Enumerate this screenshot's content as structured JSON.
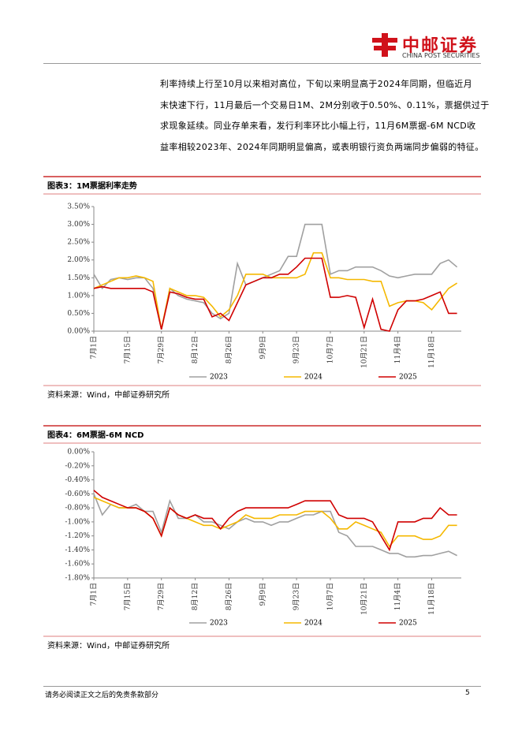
{
  "header": {
    "logo_cn": "中邮证券",
    "logo_en": "CHINA POST SECURITIES"
  },
  "paragraph": [
    "利率持续上行至10月以来相对高位，下旬以来明显高于2024年同期，但临近月",
    "末快速下行，11月最后一个交易日1M、2M分别收于0.50%、0.11%，票据供过于",
    "求现象延续。同业存单来看，发行利率环比小幅上行，11月6M票据-6M NCD收",
    "益率相较2023年、2024年同期明显偏高，或表明银行资负两端同步偏弱的特征。"
  ],
  "chart_data": [
    {
      "type": "line",
      "title": "图表3：1M票据利率走势",
      "source": "资料来源：Wind，中邮证券研究所",
      "categories": [
        "7月1日",
        null,
        null,
        null,
        "7月15日",
        null,
        null,
        null,
        "7月29日",
        null,
        null,
        null,
        "8月12日",
        null,
        null,
        null,
        "8月26日",
        null,
        null,
        null,
        "9月9日",
        null,
        null,
        null,
        "9月23日",
        null,
        null,
        null,
        "10月7日",
        null,
        null,
        null,
        "10月21日",
        null,
        null,
        null,
        "11月4日",
        null,
        null,
        null,
        "11月18日",
        null,
        null,
        null
      ],
      "series": [
        {
          "name": "2023",
          "color": "#a0a0a0",
          "values": [
            1.6,
            1.2,
            1.45,
            1.5,
            1.45,
            1.5,
            1.5,
            1.2,
            0.05,
            1.2,
            1.0,
            0.9,
            0.85,
            0.8,
            0.5,
            0.35,
            0.5,
            1.9,
            1.3,
            1.4,
            1.5,
            1.6,
            1.7,
            2.1,
            2.1,
            3.0,
            3.0,
            3.0,
            1.6,
            1.7,
            1.7,
            1.8,
            1.8,
            1.8,
            1.7,
            1.55,
            1.5,
            1.55,
            1.6,
            1.6,
            1.6,
            1.9,
            2.0,
            1.8
          ]
        },
        {
          "name": "2024",
          "color": "#f5b800",
          "values": [
            1.2,
            1.3,
            1.4,
            1.5,
            1.5,
            1.55,
            1.5,
            1.4,
            0.05,
            1.2,
            1.1,
            1.0,
            1.0,
            0.95,
            0.7,
            0.4,
            0.6,
            1.0,
            1.6,
            1.6,
            1.6,
            1.5,
            1.5,
            1.5,
            1.5,
            1.6,
            2.2,
            2.2,
            1.5,
            1.5,
            1.45,
            1.45,
            1.45,
            1.4,
            1.4,
            0.7,
            0.8,
            0.85,
            0.85,
            0.8,
            0.6,
            0.9,
            1.2,
            1.35
          ]
        },
        {
          "name": "2025",
          "color": "#d00000",
          "values": [
            1.2,
            1.25,
            1.2,
            1.2,
            1.2,
            1.2,
            1.2,
            1.1,
            0.05,
            1.1,
            1.05,
            0.95,
            0.9,
            0.9,
            0.4,
            0.5,
            0.3,
            0.8,
            1.3,
            1.4,
            1.5,
            1.5,
            1.6,
            1.6,
            1.8,
            2.05,
            2.05,
            2.05,
            0.95,
            0.95,
            1.0,
            0.95,
            0.1,
            0.9,
            0.05,
            0.0,
            0.6,
            0.85,
            0.85,
            0.9,
            1.0,
            1.1,
            0.5,
            0.5
          ]
        }
      ],
      "ylim": [
        0,
        3.5
      ],
      "yticks": [
        {
          "value": 0,
          "label": "0.00%"
        },
        {
          "value": 0.5,
          "label": "0.50%"
        },
        {
          "value": 1,
          "label": "1.00%"
        },
        {
          "value": 1.5,
          "label": "1.50%"
        },
        {
          "value": 2,
          "label": "2.00%"
        },
        {
          "value": 2.5,
          "label": "2.50%"
        },
        {
          "value": 3,
          "label": "3.00%"
        },
        {
          "value": 3.5,
          "label": "3.50%"
        }
      ]
    },
    {
      "type": "line",
      "title": "图表4：6M票据-6M NCD",
      "source": "资料来源：Wind，中邮证券研究所",
      "categories": [
        "7月1日",
        null,
        null,
        null,
        "7月15日",
        null,
        null,
        null,
        "7月29日",
        null,
        null,
        null,
        "8月12日",
        null,
        null,
        null,
        "8月26日",
        null,
        null,
        null,
        "9月9日",
        null,
        null,
        null,
        "9月23日",
        null,
        null,
        null,
        "10月7日",
        null,
        null,
        null,
        "10月21日",
        null,
        null,
        null,
        "11月4日",
        null,
        null,
        null,
        "11月18日",
        null,
        null,
        null
      ],
      "series": [
        {
          "name": "2023",
          "color": "#a0a0a0",
          "values": [
            -0.6,
            -0.9,
            -0.75,
            -0.8,
            -0.8,
            -0.75,
            -0.85,
            -0.85,
            -1.15,
            -0.7,
            -0.95,
            -0.95,
            -0.9,
            -1.0,
            -1.0,
            -1.05,
            -1.1,
            -1.0,
            -0.95,
            -1.0,
            -1.0,
            -1.05,
            -1.0,
            -1.0,
            -0.95,
            -0.9,
            -0.9,
            -0.85,
            -0.85,
            -1.15,
            -1.2,
            -1.35,
            -1.35,
            -1.35,
            -1.4,
            -1.45,
            -1.45,
            -1.5,
            -1.5,
            -1.48,
            -1.48,
            -1.45,
            -1.42,
            -1.48
          ]
        },
        {
          "name": "2024",
          "color": "#f5b800",
          "values": [
            -0.65,
            -0.7,
            -0.75,
            -0.8,
            -0.8,
            -0.8,
            -0.85,
            -0.95,
            -1.2,
            -0.8,
            -0.9,
            -0.95,
            -1.0,
            -1.05,
            -1.05,
            -1.1,
            -1.05,
            -1.0,
            -0.9,
            -0.95,
            -0.95,
            -0.95,
            -0.9,
            -0.9,
            -0.9,
            -0.85,
            -0.85,
            -0.85,
            -0.95,
            -1.1,
            -1.1,
            -1.0,
            -1.05,
            -1.1,
            -1.15,
            -1.35,
            -1.2,
            -1.2,
            -1.2,
            -1.25,
            -1.25,
            -1.2,
            -1.05,
            -1.05
          ]
        },
        {
          "name": "2025",
          "color": "#d00000",
          "values": [
            -0.55,
            -0.65,
            -0.7,
            -0.75,
            -0.8,
            -0.8,
            -0.85,
            -0.95,
            -1.2,
            -0.8,
            -0.9,
            -0.95,
            -0.9,
            -0.95,
            -0.95,
            -1.1,
            -0.95,
            -0.85,
            -0.8,
            -0.8,
            -0.8,
            -0.8,
            -0.8,
            -0.8,
            -0.75,
            -0.7,
            -0.7,
            -0.7,
            -0.7,
            -0.9,
            -0.95,
            -0.95,
            -0.95,
            -1.0,
            -1.2,
            -1.4,
            -1.0,
            -1.0,
            -1.0,
            -0.95,
            -0.95,
            -0.8,
            -0.9,
            -0.9
          ]
        }
      ],
      "ylim": [
        -1.8,
        0
      ],
      "yticks": [
        {
          "value": 0,
          "label": "0.00%"
        },
        {
          "value": -0.2,
          "label": "-0.20%"
        },
        {
          "value": -0.4,
          "label": "-0.40%"
        },
        {
          "value": -0.6,
          "label": "-0.60%"
        },
        {
          "value": -0.8,
          "label": "-0.80%"
        },
        {
          "value": -1,
          "label": "-1.00%"
        },
        {
          "value": -1.2,
          "label": "-1.20%"
        },
        {
          "value": -1.4,
          "label": "-1.40%"
        },
        {
          "value": -1.6,
          "label": "-1.60%"
        },
        {
          "value": -1.8,
          "label": "-1.80%"
        }
      ]
    }
  ],
  "footer": {
    "disclaimer": "请务必阅读正文之后的免责条款部分",
    "page": "5"
  }
}
